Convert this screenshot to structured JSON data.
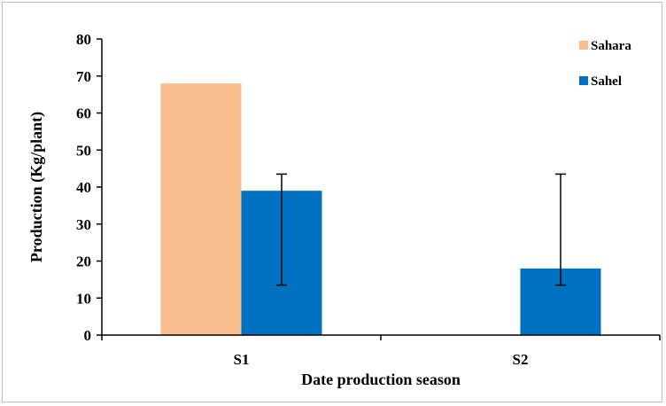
{
  "chart_data": {
    "type": "bar",
    "categories": [
      "S1",
      "S2"
    ],
    "series": [
      {
        "name": "Sahara",
        "color": "#F9BE8E",
        "values": [
          68,
          0
        ]
      },
      {
        "name": "Sahel",
        "color": "#0070C0",
        "values": [
          39,
          18
        ],
        "error_low": [
          13.5,
          13.5
        ],
        "error_high": [
          43.5,
          43.5
        ]
      }
    ],
    "xlabel": "Date production season",
    "ylabel": "Production (Kg/plant)",
    "ylim": [
      0,
      80
    ],
    "yticks": [
      0,
      10,
      20,
      30,
      40,
      50,
      60,
      70,
      80
    ],
    "grid": false,
    "legend": "top-right"
  }
}
